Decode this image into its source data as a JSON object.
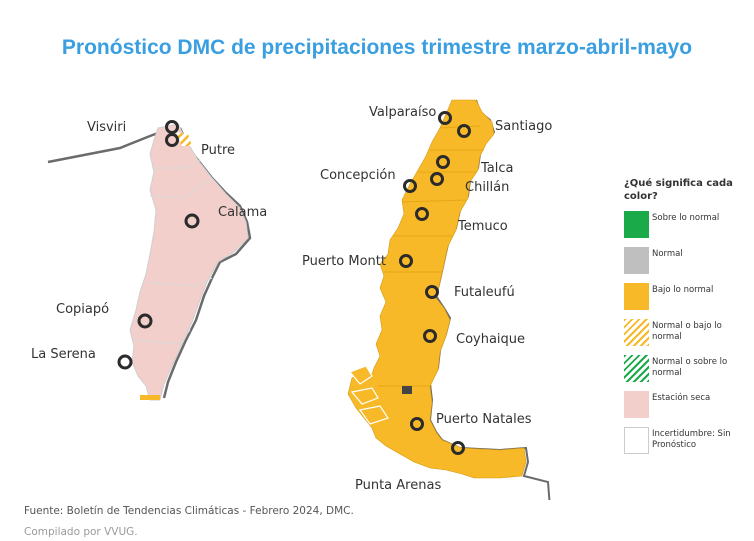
{
  "title": "Pronóstico DMC de precipitaciones trimestre marzo-abril-mayo",
  "cities": {
    "visviri": "Visviri",
    "putre": "Putre",
    "calama": "Calama",
    "copiapo": "Copiapó",
    "la_serena": "La Serena",
    "valparaiso": "Valparaíso",
    "santiago": "Santiago",
    "talca": "Talca",
    "concepcion": "Concepción",
    "chillan": "Chillán",
    "temuco": "Temuco",
    "puerto_montt": "Puerto Montt",
    "futaleufu": "Futaleufú",
    "coyhaique": "Coyhaique",
    "puerto_natales": "Puerto Natales",
    "punta_arenas": "Punta Arenas"
  },
  "legend": {
    "title": "¿Qué significa cada color?",
    "items": [
      {
        "label": "Sobre lo normal",
        "color": "#1aaa4a"
      },
      {
        "label": "Normal",
        "color": "#bfbfbf"
      },
      {
        "label": "Bajo lo normal",
        "color": "#f7b928"
      },
      {
        "label": "Normal o bajo lo normal",
        "color": "#f7b928",
        "pattern": "hatched"
      },
      {
        "label": "Normal o sobre lo normal",
        "color": "#1aaa4a",
        "pattern": "hatched"
      },
      {
        "label": "Estación seca",
        "color": "#f2cfcb"
      },
      {
        "label": "Incertidumbre: Sin Pronóstico",
        "color": "#ffffff"
      }
    ]
  },
  "source": "Fuente: Boletín de Tendencias Climáticas - Febrero 2024, DMC.",
  "compiled": "Compilado por VVUG.",
  "colors": {
    "title": "#3a9fe0",
    "dry_season": "#f2cfcb",
    "below_normal": "#f7b928",
    "border": "#6b6b6b",
    "marker": "#2b2b2b"
  }
}
